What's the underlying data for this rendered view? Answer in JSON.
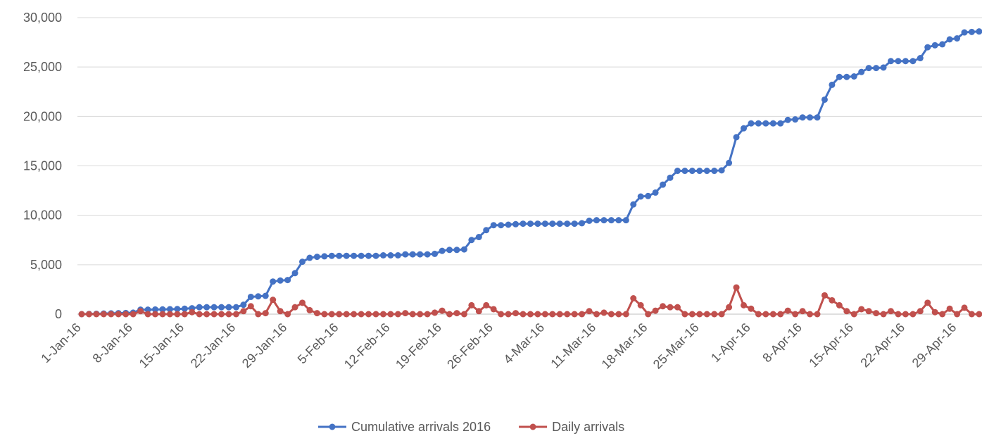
{
  "chart_data": {
    "type": "line",
    "categories": [
      "1-Jan-16",
      null,
      null,
      null,
      null,
      null,
      null,
      "8-Jan-16",
      null,
      null,
      null,
      null,
      null,
      null,
      "15-Jan-16",
      null,
      null,
      null,
      null,
      null,
      null,
      "22-Jan-16",
      null,
      null,
      null,
      null,
      null,
      null,
      "29-Jan-16",
      null,
      null,
      null,
      null,
      null,
      null,
      "5-Feb-16",
      null,
      null,
      null,
      null,
      null,
      null,
      "12-Feb-16",
      null,
      null,
      null,
      null,
      null,
      null,
      "19-Feb-16",
      null,
      null,
      null,
      null,
      null,
      null,
      "26-Feb-16",
      null,
      null,
      null,
      null,
      null,
      null,
      "4-Mar-16",
      null,
      null,
      null,
      null,
      null,
      null,
      "11-Mar-16",
      null,
      null,
      null,
      null,
      null,
      null,
      "18-Mar-16",
      null,
      null,
      null,
      null,
      null,
      null,
      "25-Mar-16",
      null,
      null,
      null,
      null,
      null,
      null,
      "1-Apr-16",
      null,
      null,
      null,
      null,
      null,
      null,
      "8-Apr-16",
      null,
      null,
      null,
      null,
      null,
      null,
      "15-Apr-16",
      null,
      null,
      null,
      null,
      null,
      null,
      "22-Apr-16",
      null,
      null,
      null,
      null,
      null,
      null,
      "29-Apr-16",
      null,
      null,
      null
    ],
    "series": [
      {
        "name": "Cumulative arrivals 2016",
        "color": "#4472c4",
        "values": [
          0,
          20,
          40,
          60,
          80,
          100,
          120,
          150,
          450,
          450,
          470,
          480,
          500,
          520,
          550,
          600,
          700,
          700,
          700,
          700,
          700,
          700,
          950,
          1750,
          1800,
          1850,
          3300,
          3400,
          3450,
          4150,
          5300,
          5700,
          5800,
          5850,
          5900,
          5900,
          5900,
          5900,
          5900,
          5900,
          5900,
          5950,
          5950,
          5950,
          6050,
          6050,
          6050,
          6050,
          6100,
          6400,
          6500,
          6500,
          6550,
          7500,
          7800,
          8500,
          9000,
          9000,
          9050,
          9100,
          9150,
          9150,
          9150,
          9150,
          9150,
          9150,
          9150,
          9150,
          9200,
          9450,
          9500,
          9500,
          9500,
          9500,
          9500,
          11100,
          11900,
          11950,
          12300,
          13100,
          13800,
          14500,
          14500,
          14500,
          14500,
          14500,
          14500,
          14550,
          15300,
          17900,
          18800,
          19300,
          19300,
          19300,
          19300,
          19300,
          19650,
          19700,
          19900,
          19900,
          19900,
          21700,
          23200,
          24000,
          24000,
          24050,
          24500,
          24900,
          24900,
          24950,
          25600,
          25600,
          25600,
          25600,
          25900,
          27000,
          27200,
          27300,
          27800,
          27900,
          28500,
          28550,
          28600
        ]
      },
      {
        "name": "Daily arrivals",
        "color": "#c0504d",
        "values": [
          0,
          0,
          0,
          0,
          0,
          0,
          0,
          0,
          300,
          0,
          0,
          0,
          0,
          0,
          0,
          200,
          0,
          0,
          0,
          0,
          0,
          0,
          300,
          800,
          0,
          100,
          1450,
          300,
          0,
          700,
          1150,
          400,
          100,
          0,
          0,
          0,
          0,
          0,
          0,
          0,
          0,
          0,
          0,
          0,
          100,
          0,
          0,
          0,
          150,
          350,
          0,
          100,
          0,
          900,
          300,
          900,
          500,
          0,
          0,
          100,
          0,
          0,
          0,
          0,
          0,
          0,
          0,
          0,
          0,
          300,
          0,
          150,
          0,
          0,
          0,
          1600,
          900,
          0,
          350,
          800,
          700,
          700,
          0,
          0,
          0,
          0,
          0,
          0,
          700,
          2700,
          900,
          550,
          0,
          0,
          0,
          0,
          350,
          0,
          300,
          0,
          0,
          1900,
          1400,
          900,
          300,
          0,
          500,
          300,
          100,
          0,
          300,
          0,
          0,
          0,
          300,
          1150,
          200,
          0,
          550,
          0,
          650,
          0,
          0
        ]
      }
    ],
    "ylim": [
      0,
      30000
    ],
    "yticks": [
      0,
      {
        "value": 5000,
        "label": "5,000"
      },
      {
        "value": 10000,
        "label": "10,000"
      },
      {
        "value": 15000,
        "label": "15,000"
      },
      {
        "value": 20000,
        "label": "20,000"
      },
      {
        "value": 25000,
        "label": "25,000"
      },
      {
        "value": 30000,
        "label": "30,000"
      }
    ],
    "grid": true,
    "legend": "bottom"
  }
}
